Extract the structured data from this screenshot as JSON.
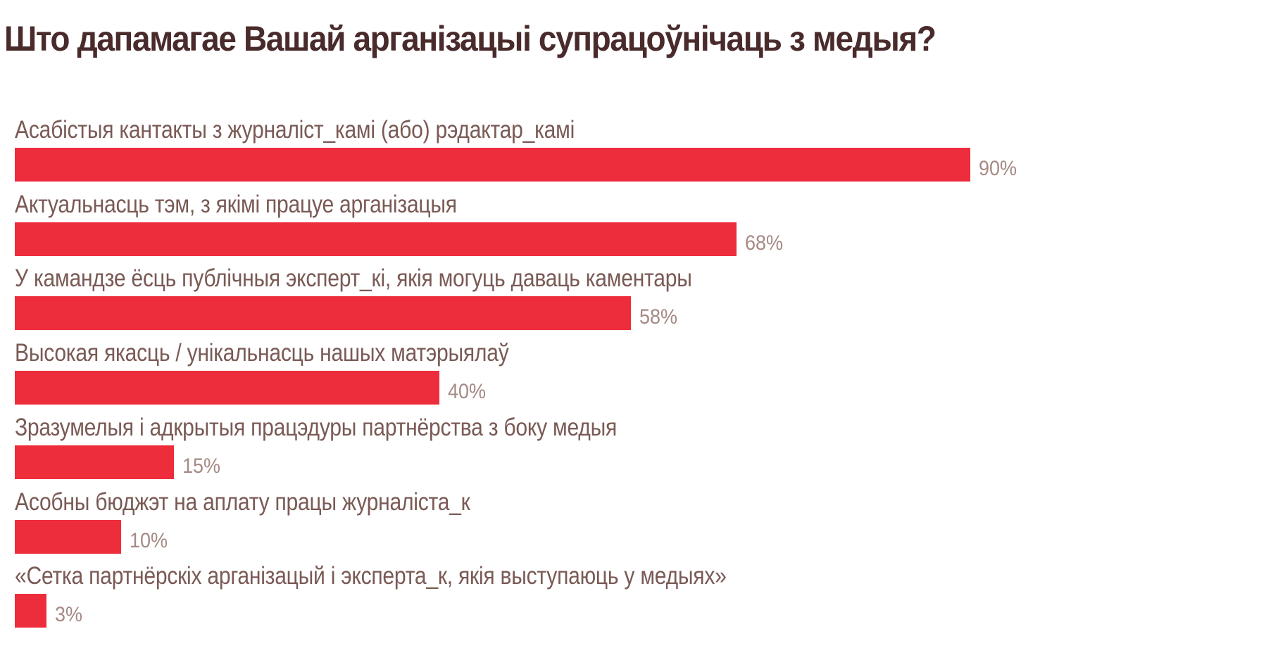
{
  "title": "Што дапамагае Вашай арганізацыі супрацоўнічаць з медыя?",
  "colors": {
    "bar": "#ee2d3c",
    "title": "#4a2b2b",
    "label": "#7a5a55",
    "value": "#a58a84"
  },
  "rows": [
    {
      "label": "Асабістыя кантакты з журналіст_камі (або) рэдактар_камі",
      "value": 90,
      "value_label": "90%"
    },
    {
      "label": "Актуальнасць тэм, з якімі працуе арганізацыя",
      "value": 68,
      "value_label": "68%"
    },
    {
      "label": "У камандзе ёсць публічныя эксперт_кі, якія могуць даваць каментары",
      "value": 58,
      "value_label": "58%"
    },
    {
      "label": "Высокая якасць / унікальнасць нашых матэрыялаў",
      "value": 40,
      "value_label": "40%"
    },
    {
      "label": "Зразумелыя і адкрытыя працэдуры партнёрства з боку медыя",
      "value": 15,
      "value_label": "15%"
    },
    {
      "label": "Асобны бюджэт на аплату працы журналіста_к",
      "value": 10,
      "value_label": "10%"
    },
    {
      "label": "«Сетка партнёрскіх арганізацый і эксперта_к, якія выступаюць у медыях»",
      "value": 3,
      "value_label": "3%"
    }
  ],
  "chart_data": {
    "type": "bar",
    "orientation": "horizontal",
    "title": "Што дапамагае Вашай арганізацыі супрацоўнічаць з медыя?",
    "categories": [
      "Асабістыя кантакты з журналіст_камі (або) рэдактар_камі",
      "Актуальнасць тэм, з якімі працуе арганізацыя",
      "У камандзе ёсць публічныя эксперт_кі, якія могуць даваць каментары",
      "Высокая якасць / унікальнасць нашых матэрыялаў",
      "Зразумелыя і адкрытыя працэдуры партнёрства з боку медыя",
      "Асобны бюджэт на аплату працы журналіста_к",
      "«Сетка партнёрскіх арганізацый і эксперта_к, якія выступаюць у медыях»"
    ],
    "values": [
      90,
      68,
      58,
      40,
      15,
      10,
      3
    ],
    "unit": "%",
    "xlabel": "",
    "ylabel": "",
    "xlim": [
      0,
      100
    ],
    "grid": false,
    "legend": null,
    "data_labels": true
  }
}
